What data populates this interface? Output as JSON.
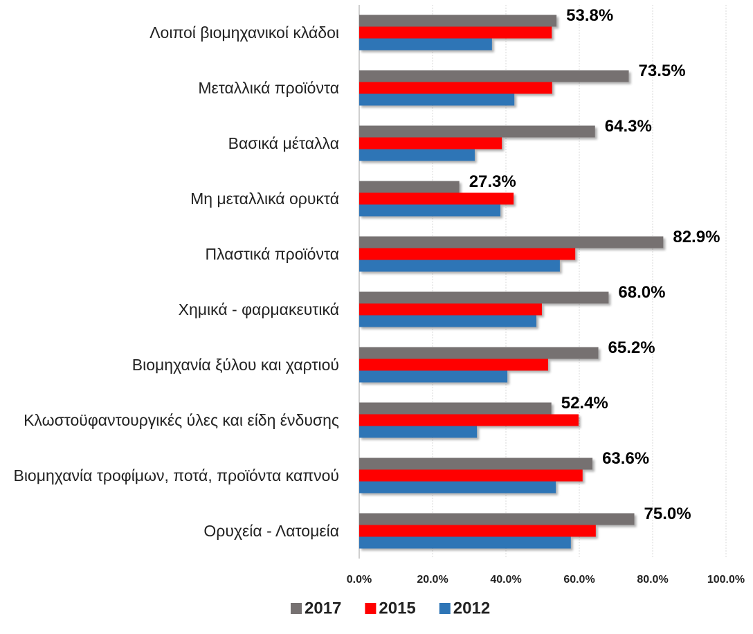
{
  "chart_data": {
    "type": "hbar",
    "categories": [
      "Λοιποί βιομηχανικοί κλάδοι",
      "Μεταλλικά προϊόντα",
      "Βασικά μέταλλα",
      "Μη μεταλλικά ορυκτά",
      "Πλαστικά προϊόντα",
      "Χημικά - φαρμακευτικά",
      "Βιομηχανία ξύλου και χαρτιού",
      "Κλωστοϋφαντουργικές ύλες και είδη ένδυσης",
      "Βιομηχανία τροφίμων, ποτά, προϊόντα καπνού",
      "Ορυχεία - Λατομεία"
    ],
    "series": [
      {
        "name": "2017",
        "color": "#767171",
        "values": [
          53.8,
          73.5,
          64.3,
          27.3,
          82.9,
          68.0,
          65.2,
          52.4,
          63.6,
          75.0
        ],
        "value_labels": [
          "53.8%",
          "73.5%",
          "64.3%",
          "27.3%",
          "82.9%",
          "68.0%",
          "65.2%",
          "52.4%",
          "63.6%",
          "75.0%"
        ]
      },
      {
        "name": "2015",
        "color": "#ff0000",
        "values": [
          52.5,
          52.6,
          38.9,
          42.1,
          58.9,
          49.8,
          51.5,
          59.8,
          60.9,
          64.5
        ]
      },
      {
        "name": "2012",
        "color": "#2e75b6",
        "values": [
          36.2,
          42.3,
          31.5,
          38.5,
          54.7,
          48.3,
          40.4,
          32.1,
          53.6,
          57.7
        ]
      }
    ],
    "xlim": [
      0,
      100
    ],
    "xticks": [
      {
        "value": 0,
        "label": "0.0%"
      },
      {
        "value": 20,
        "label": "20.0%"
      },
      {
        "value": 40,
        "label": "40.0%"
      },
      {
        "value": 60,
        "label": "60.0%"
      },
      {
        "value": 80,
        "label": "80.0%"
      },
      {
        "value": 100,
        "label": "100.0%"
      }
    ],
    "grid": true,
    "legend": "bottom"
  }
}
